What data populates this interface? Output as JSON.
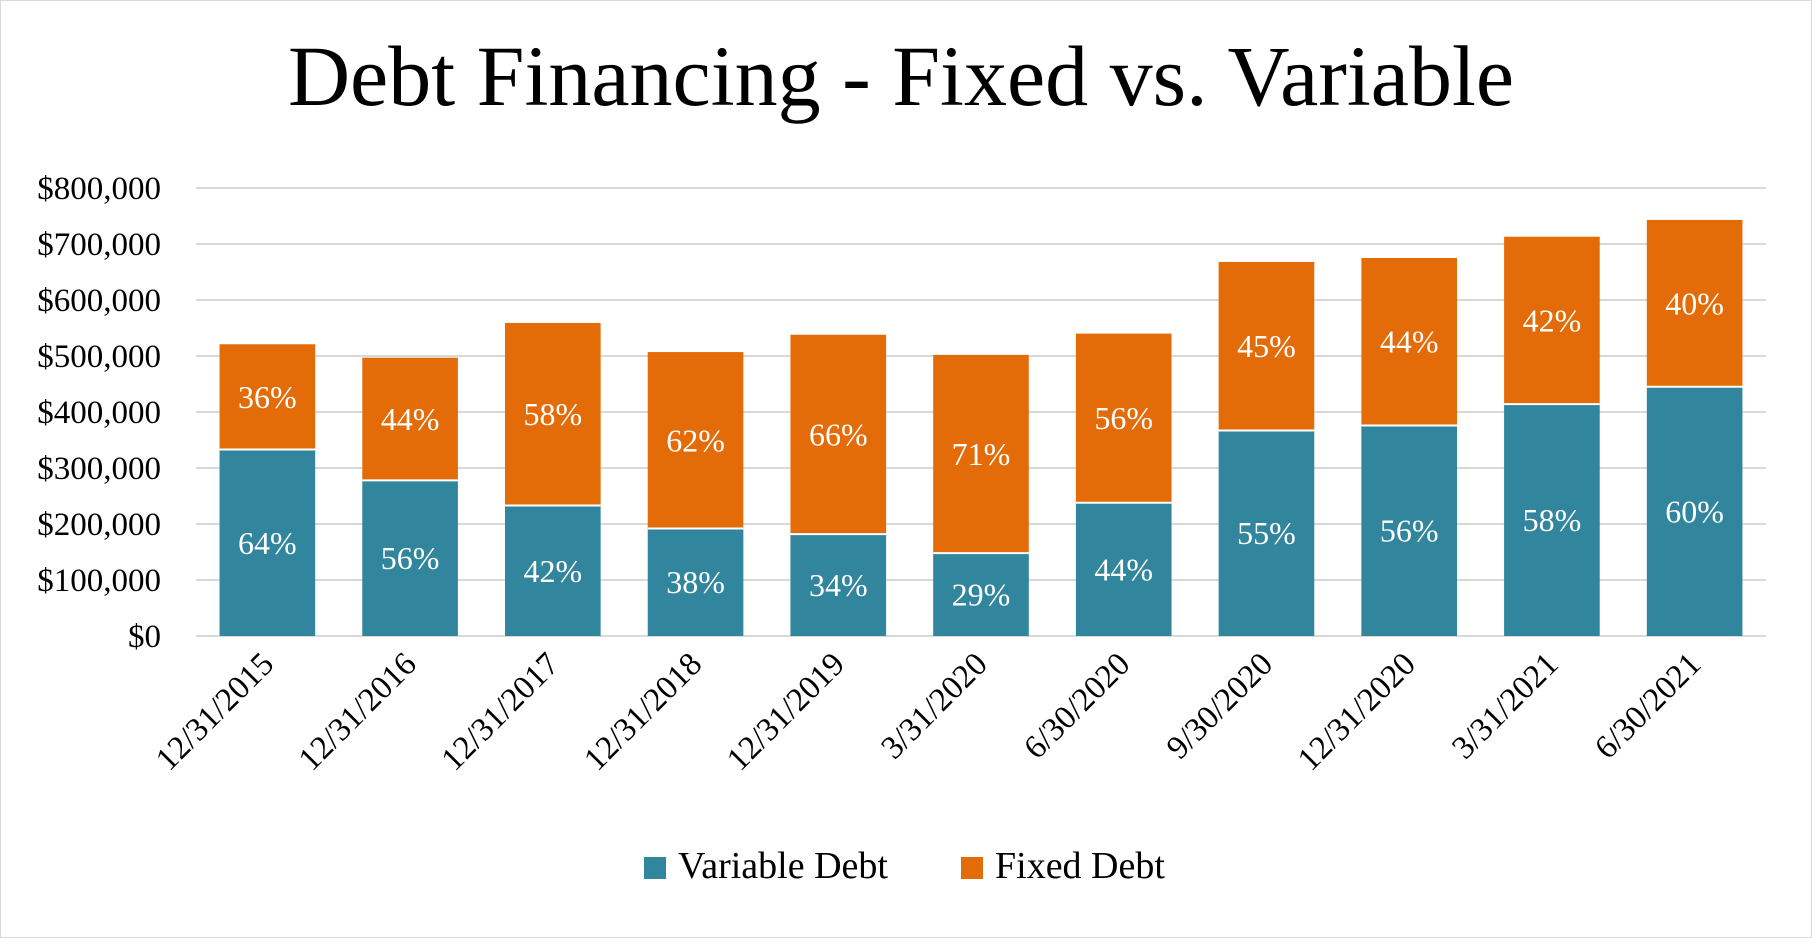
{
  "chart_data": {
    "type": "bar",
    "stacked": true,
    "title": "Debt Financing - Fixed vs. Variable",
    "xlabel": "",
    "ylabel": "",
    "ylim": [
      0,
      800000
    ],
    "yticks": [
      0,
      100000,
      200000,
      300000,
      400000,
      500000,
      600000,
      700000,
      800000
    ],
    "ytick_labels": [
      "$0",
      "$100,000",
      "$200,000",
      "$300,000",
      "$400,000",
      "$500,000",
      "$600,000",
      "$700,000",
      "$800,000"
    ],
    "grid": true,
    "legend": "bottom",
    "categories": [
      "12/31/2015",
      "12/31/2016",
      "12/31/2017",
      "12/31/2018",
      "12/31/2019",
      "3/31/2020",
      "6/30/2020",
      "9/30/2020",
      "12/31/2020",
      "3/31/2021",
      "6/30/2021"
    ],
    "series": [
      {
        "name": "Variable Debt",
        "color": "#31859c",
        "values": [
          333000,
          278000,
          233000,
          192000,
          182000,
          148000,
          238000,
          367000,
          376000,
          414000,
          445000
        ],
        "labels": [
          "64%",
          "56%",
          "42%",
          "38%",
          "34%",
          "29%",
          "44%",
          "55%",
          "56%",
          "58%",
          "60%"
        ]
      },
      {
        "name": "Fixed Debt",
        "color": "#e36c09",
        "values": [
          188000,
          219000,
          326000,
          315000,
          356000,
          354000,
          302000,
          301000,
          299000,
          299000,
          298000
        ],
        "labels": [
          "36%",
          "44%",
          "58%",
          "62%",
          "66%",
          "71%",
          "56%",
          "45%",
          "44%",
          "42%",
          "40%"
        ]
      }
    ]
  }
}
